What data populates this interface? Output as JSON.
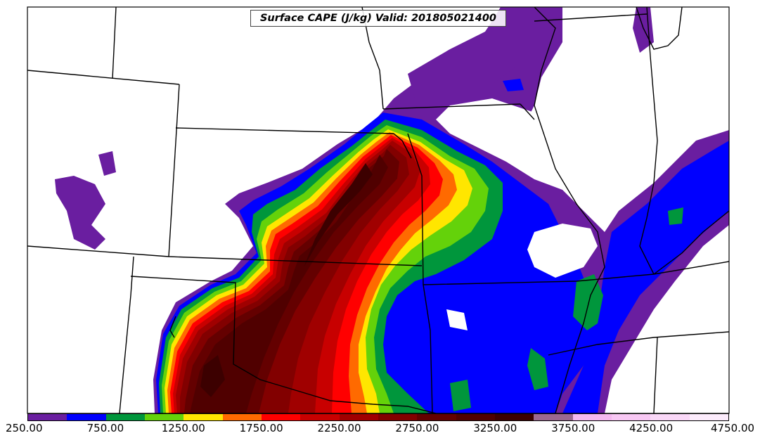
{
  "map": {
    "title": "Surface CAPE (J/kg) Valid: 201805021400",
    "field": "Surface CAPE",
    "units": "J/kg",
    "valid_time": "201805021400"
  },
  "colorbar": {
    "levels": [
      250,
      500,
      750,
      1000,
      1250,
      1500,
      1750,
      2000,
      2250,
      2500,
      2750,
      3000,
      3250,
      3500,
      3750,
      4000,
      4250,
      4500,
      4750
    ],
    "colors": [
      "#6a1ea0",
      "#0000ff",
      "#00963c",
      "#64d20a",
      "#ffe600",
      "#ff6a00",
      "#ff0000",
      "#c80000",
      "#a00000",
      "#820000",
      "#640000",
      "#500000",
      "#3c0000",
      "#9c6890",
      "#f5b8f0",
      "#f8c8f4",
      "#fad8f8",
      "#fcecfc"
    ],
    "tick_labels": [
      "250.00",
      "750.00",
      "1250.00",
      "1750.00",
      "2250.00",
      "2750.00",
      "3250.00",
      "3750.00",
      "4250.00",
      "4750.00"
    ]
  }
}
